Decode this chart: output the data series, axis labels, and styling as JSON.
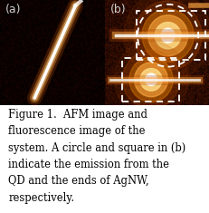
{
  "fig_width": 2.32,
  "fig_height": 2.35,
  "dpi": 100,
  "panel_a_label": "(a)",
  "panel_b_label": "(b)",
  "caption_line1": "Figure 1.  AFM image and",
  "caption_line2": "fluorescence image of the",
  "caption_line3": "system. A circle and square in (b)",
  "caption_line4": "indicate the emission from the",
  "caption_line5": "QD and the ends of AgNW,",
  "caption_line6": "respectively.",
  "caption_fontsize": 8.3,
  "label_fontsize": 9,
  "label_color": "#cccccc",
  "bg_color_a": "#000000",
  "bg_color_b": "#1a0800",
  "dashed_color": "#ffffff"
}
